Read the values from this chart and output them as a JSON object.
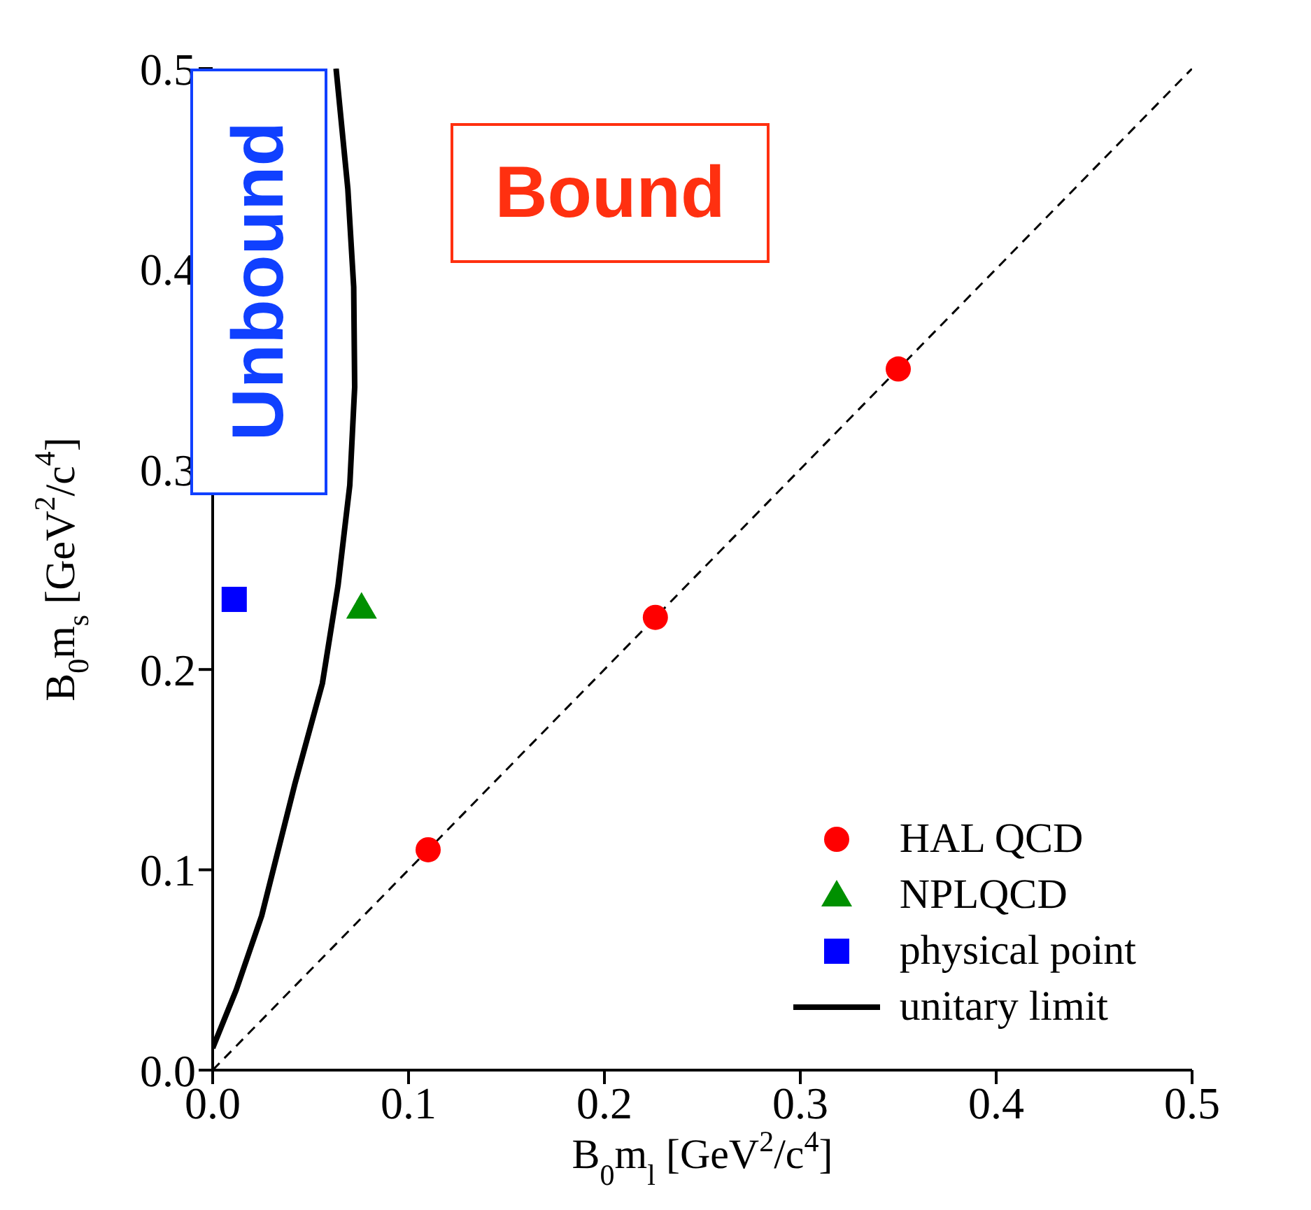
{
  "chart_data": {
    "type": "scatter",
    "xlabel": "B$_{0}$m$_{l}$ [GeV$^{2}$/c$^{4}$]",
    "ylabel": "B$_{0}$m$_{s}$ [GeV$^{2}$/c$^{4}$]",
    "xlim": [
      0,
      0.5
    ],
    "ylim": [
      0,
      0.5
    ],
    "xticks": [
      {
        "value": 0,
        "label": "0.0"
      },
      0.1,
      0.2,
      0.3,
      0.4,
      0.5
    ],
    "yticks": [
      {
        "value": 0,
        "label": "0.0"
      },
      0.1,
      0.2,
      0.3,
      0.4,
      0.5
    ],
    "grid": false,
    "legend": "bottom right",
    "annotations": [
      "Unbound",
      "Bound"
    ],
    "series": [
      {
        "name": "HAL QCD",
        "marker": "circle",
        "color": "#ff0000",
        "x": [
          0.11,
          0.226,
          0.35
        ],
        "values": [
          0.11,
          0.226,
          0.35
        ]
      },
      {
        "name": "NPLQCD",
        "marker": "triangle",
        "color": "#009000",
        "x": [
          0.076
        ],
        "values": [
          0.231
        ]
      },
      {
        "name": "physical point",
        "marker": "square",
        "color": "#0000ff",
        "x": [
          0.011
        ],
        "values": [
          0.235
        ]
      },
      {
        "name": "unitary limit",
        "type": "line",
        "line_style": "solid",
        "color": "#000000",
        "x": [
          0,
          0.012,
          0.025,
          0.042,
          0.056,
          0.064,
          0.07,
          0.0725,
          0.072,
          0.069,
          0.063
        ],
        "values": [
          0.011,
          0.04,
          0.077,
          0.143,
          0.193,
          0.242,
          0.292,
          0.341,
          0.391,
          0.44,
          0.5
        ]
      },
      {
        "type": "line",
        "line_style": "dashed",
        "color": "#000000",
        "x": [
          0,
          0.5
        ],
        "values": [
          0,
          0.5
        ]
      }
    ]
  }
}
